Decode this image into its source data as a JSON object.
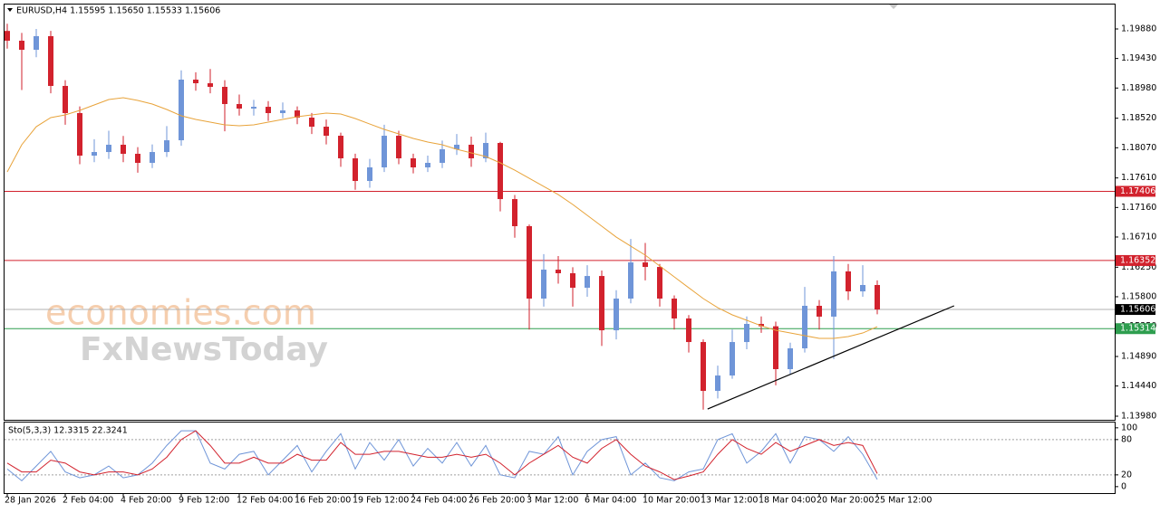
{
  "chart_data": [
    {
      "type": "candlestick",
      "title": "EURUSD,H4  1.15595 1.15650 1.15533 1.15606",
      "categories": [
        "28 Jan 2026",
        null,
        null,
        null,
        "2 Feb 04:00",
        null,
        null,
        null,
        "4 Feb 20:00",
        null,
        null,
        null,
        "9 Feb 12:00",
        null,
        null,
        null,
        "12 Feb 04:00",
        null,
        null,
        null,
        "16 Feb 20:00",
        null,
        null,
        null,
        "19 Feb 12:00",
        null,
        null,
        null,
        "24 Feb 04:00",
        null,
        null,
        null,
        "26 Feb 20:00",
        null,
        null,
        null,
        "3 Mar 12:00",
        null,
        null,
        null,
        "6 Mar 04:00",
        null,
        null,
        null,
        "10 Mar 20:00",
        null,
        null,
        null,
        "13 Mar 12:00",
        null,
        null,
        null,
        "18 Mar 04:00",
        null,
        null,
        null,
        "20 Mar 20:00",
        null,
        null,
        null,
        "25 Mar 12:00"
      ],
      "open": [
        1.1985,
        1.19701,
        1.19563,
        1.1977,
        1.19012,
        1.18598,
        1.1795,
        1.18005,
        1.18116,
        1.17978,
        1.1784,
        1.18005,
        1.18184,
        1.19108,
        1.19053,
        1.18998,
        1.18736,
        1.18667,
        1.18694,
        1.18598,
        1.18639,
        1.18529,
        1.18391,
        1.18253,
        1.17909,
        1.17564,
        1.17771,
        1.18253,
        1.17909,
        1.17771,
        1.1784,
        1.18047,
        1.18116,
        1.17909,
        1.18143,
        1.17288,
        1.16875,
        1.15772,
        1.16213,
        1.16158,
        1.15937,
        1.16116,
        1.15289,
        1.15772,
        1.16323,
        1.16254,
        1.15772,
        1.15469,
        1.1511,
        1.14366,
        1.146,
        1.1511,
        1.15386,
        1.1535,
        1.14697,
        1.15014,
        1.15662,
        1.15497,
        1.16186,
        1.15882,
        1.15979
      ],
      "high": [
        1.1996,
        1.1982,
        1.1988,
        1.1985,
        1.191,
        1.187,
        1.182,
        1.1833,
        1.1825,
        1.1808,
        1.1812,
        1.184,
        1.1925,
        1.1922,
        1.1927,
        1.191,
        1.1888,
        1.188,
        1.1878,
        1.1876,
        1.187,
        1.186,
        1.185,
        1.183,
        1.1798,
        1.179,
        1.1842,
        1.1833,
        1.1798,
        1.1795,
        1.1818,
        1.1828,
        1.1824,
        1.183,
        1.1816,
        1.1735,
        1.169,
        1.1645,
        1.1642,
        1.1625,
        1.1628,
        1.162,
        1.159,
        1.1668,
        1.1662,
        1.163,
        1.1582,
        1.1552,
        1.1515,
        1.1475,
        1.153,
        1.155,
        1.155,
        1.1542,
        1.151,
        1.1595,
        1.1575,
        1.1642,
        1.163,
        1.1628,
        1.1605
      ],
      "low": [
        1.1958,
        1.1895,
        1.1945,
        1.189,
        1.1842,
        1.1782,
        1.1785,
        1.179,
        1.1785,
        1.1769,
        1.1776,
        1.1793,
        1.181,
        1.1894,
        1.189,
        1.1832,
        1.1856,
        1.1856,
        1.1848,
        1.1852,
        1.1843,
        1.1828,
        1.1812,
        1.1778,
        1.1743,
        1.1746,
        1.177,
        1.1782,
        1.1768,
        1.177,
        1.1776,
        1.1796,
        1.1778,
        1.1785,
        1.171,
        1.167,
        1.153,
        1.1565,
        1.16,
        1.1565,
        1.158,
        1.1505,
        1.1515,
        1.157,
        1.1605,
        1.1565,
        1.153,
        1.1495,
        1.1408,
        1.1425,
        1.1455,
        1.15,
        1.1525,
        1.1445,
        1.1462,
        1.1495,
        1.153,
        1.1485,
        1.1575,
        1.158,
        1.15533
      ],
      "close": [
        1.19701,
        1.19563,
        1.1977,
        1.19012,
        1.18598,
        1.1795,
        1.18005,
        1.18116,
        1.17978,
        1.1784,
        1.18005,
        1.18184,
        1.19108,
        1.19053,
        1.18998,
        1.18736,
        1.18667,
        1.18694,
        1.18598,
        1.18639,
        1.18529,
        1.18391,
        1.18253,
        1.17909,
        1.17564,
        1.17771,
        1.18253,
        1.17909,
        1.17771,
        1.1784,
        1.18047,
        1.18116,
        1.17909,
        1.18143,
        1.17288,
        1.16875,
        1.15772,
        1.16213,
        1.16158,
        1.15937,
        1.16116,
        1.15289,
        1.15772,
        1.16323,
        1.16254,
        1.15772,
        1.15469,
        1.1511,
        1.14366,
        1.146,
        1.1511,
        1.15386,
        1.1535,
        1.14697,
        1.15014,
        1.15662,
        1.15497,
        1.16186,
        1.15882,
        1.15979,
        1.15606
      ],
      "up_color": "#6f95d8",
      "down_color": "#d2222d",
      "series": [
        {
          "color": "#e8a33a",
          "values": [
            1.17702,
            1.18116,
            1.18391,
            1.18529,
            1.1857,
            1.18639,
            1.18722,
            1.18805,
            1.18832,
            1.18791,
            1.18736,
            1.18653,
            1.18557,
            1.18501,
            1.1846,
            1.18419,
            1.18405,
            1.18419,
            1.1846,
            1.18501,
            1.18543,
            1.1857,
            1.18598,
            1.18584,
            1.18515,
            1.18432,
            1.1835,
            1.18281,
            1.18212,
            1.18157,
            1.18116,
            1.18047,
            1.17991,
            1.17936,
            1.1784,
            1.17729,
            1.17605,
            1.17481,
            1.17357,
            1.17206,
            1.1704,
            1.16875,
            1.16709,
            1.16571,
            1.16434,
            1.16268,
            1.16103,
            1.15937,
            1.15772,
            1.15634,
            1.15524,
            1.15441,
            1.15358,
            1.15289,
            1.15248,
            1.15207,
            1.15165,
            1.15165,
            1.15193,
            1.15248,
            1.15344
          ]
        }
      ],
      "levels": [
        {
          "value": 1.17406,
          "color": "#d2222d",
          "label_bg": "#d2222d"
        },
        {
          "value": 1.16352,
          "color": "#d2222d",
          "label_bg": "#d2222d"
        },
        {
          "value": 1.15606,
          "color": "#b0b0b0",
          "label_bg": "#000000"
        },
        {
          "value": 1.15314,
          "color": "#2e9e4f",
          "label_bg": "#2e9e4f"
        }
      ],
      "trendline": {
        "x": [
          48.3,
          65.3
        ],
        "values": [
          1.1409,
          1.15662
        ],
        "color": "#000000"
      },
      "watermarks": [
        "economies.com",
        "FxNewsToday"
      ],
      "ylim": [
        1.13925,
        1.20266
      ],
      "yticks": [
        {
          "value": 1.1988,
          "label": "1.19880"
        },
        {
          "value": 1.1943,
          "label": "1.19430"
        },
        {
          "value": 1.1898,
          "label": "1.18980"
        },
        {
          "value": 1.1852,
          "label": "1.18520"
        },
        {
          "value": 1.1807,
          "label": "1.18070"
        },
        {
          "value": 1.1761,
          "label": "1.17610"
        },
        {
          "value": 1.1716,
          "label": "1.17160"
        },
        {
          "value": 1.1671,
          "label": "1.16710"
        },
        {
          "value": 1.1625,
          "label": "1.16250"
        },
        {
          "value": 1.158,
          "label": "1.15800"
        },
        {
          "value": 1.1535,
          "label": "1.15350"
        },
        {
          "value": 1.1489,
          "label": "1.14890"
        },
        {
          "value": 1.1444,
          "label": "1.14440"
        },
        {
          "value": 1.1398,
          "label": "1.13980"
        }
      ]
    },
    {
      "type": "line",
      "title": "Sto(5,3,3) 12.3315 22.3241",
      "series": [
        {
          "color": "#6f95d8",
          "values": [
            30,
            10,
            35,
            60,
            25,
            15,
            20,
            35,
            15,
            20,
            40,
            70,
            95,
            95,
            40,
            30,
            55,
            60,
            20,
            45,
            70,
            25,
            60,
            90,
            30,
            75,
            45,
            80,
            35,
            65,
            40,
            75,
            35,
            70,
            20,
            15,
            60,
            55,
            85,
            20,
            60,
            80,
            85,
            20,
            40,
            15,
            10,
            25,
            30,
            80,
            90,
            40,
            60,
            90,
            40,
            85,
            80,
            60,
            85,
            55,
            12.3315
          ]
        },
        {
          "color": "#d2222d",
          "values": [
            40,
            25,
            25,
            45,
            40,
            25,
            20,
            25,
            25,
            20,
            30,
            50,
            80,
            95,
            70,
            40,
            40,
            50,
            40,
            40,
            55,
            45,
            45,
            75,
            55,
            55,
            60,
            60,
            55,
            50,
            50,
            55,
            50,
            55,
            40,
            20,
            40,
            55,
            70,
            50,
            40,
            65,
            80,
            55,
            35,
            25,
            12,
            18,
            25,
            55,
            80,
            65,
            55,
            75,
            60,
            70,
            80,
            70,
            75,
            70,
            22.3241
          ]
        }
      ],
      "levels": [
        80,
        20
      ],
      "ylim": [
        -11,
        109
      ],
      "yticks": [
        100,
        80,
        20,
        0
      ]
    }
  ]
}
